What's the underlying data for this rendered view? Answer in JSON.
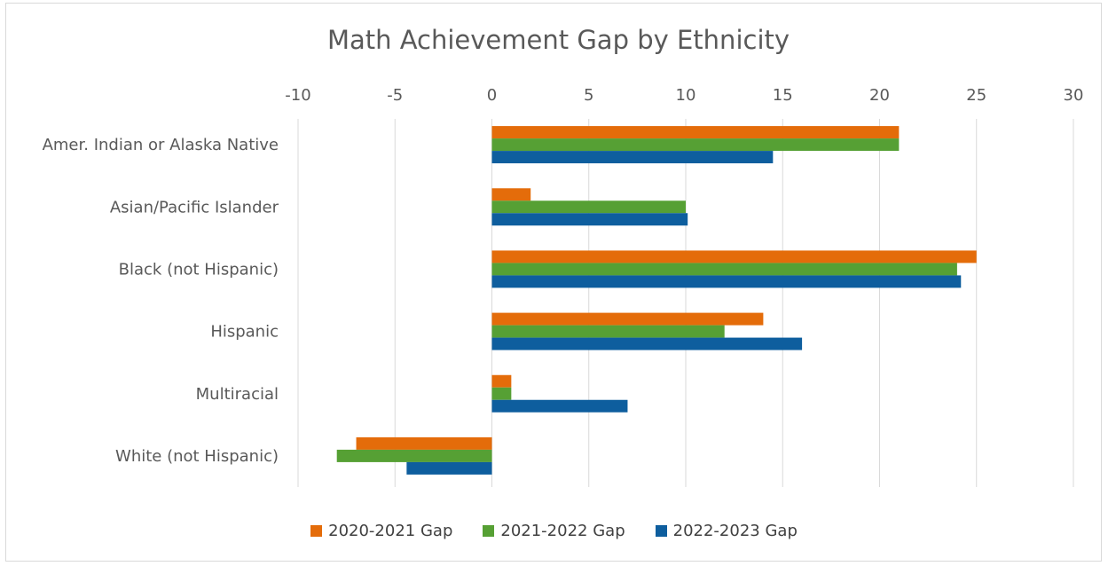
{
  "chart_data": {
    "type": "bar",
    "orientation": "horizontal",
    "title": "Math Achievement Gap by Ethnicity",
    "categories": [
      "Amer. Indian or Alaska Native",
      "Asian/Pacific Islander",
      "Black (not Hispanic)",
      "Hispanic",
      "Multiracial",
      "White (not Hispanic)"
    ],
    "series": [
      {
        "name": "2020-2021 Gap",
        "color": "#E46C0A",
        "values": [
          21,
          2,
          25,
          14,
          1,
          -7
        ]
      },
      {
        "name": "2021-2022 Gap",
        "color": "#56A034",
        "values": [
          21,
          10,
          24,
          12,
          1,
          -8
        ]
      },
      {
        "name": "2022-2023 Gap",
        "color": "#0E5E9E",
        "values": [
          14.5,
          10.1,
          24.2,
          16,
          7,
          -4.4
        ]
      }
    ],
    "xlim": [
      -10,
      30
    ],
    "xticks": [
      -10,
      -5,
      0,
      5,
      10,
      15,
      20,
      25,
      30
    ],
    "axis_position": "top",
    "grid": true,
    "legend_position": "bottom"
  }
}
